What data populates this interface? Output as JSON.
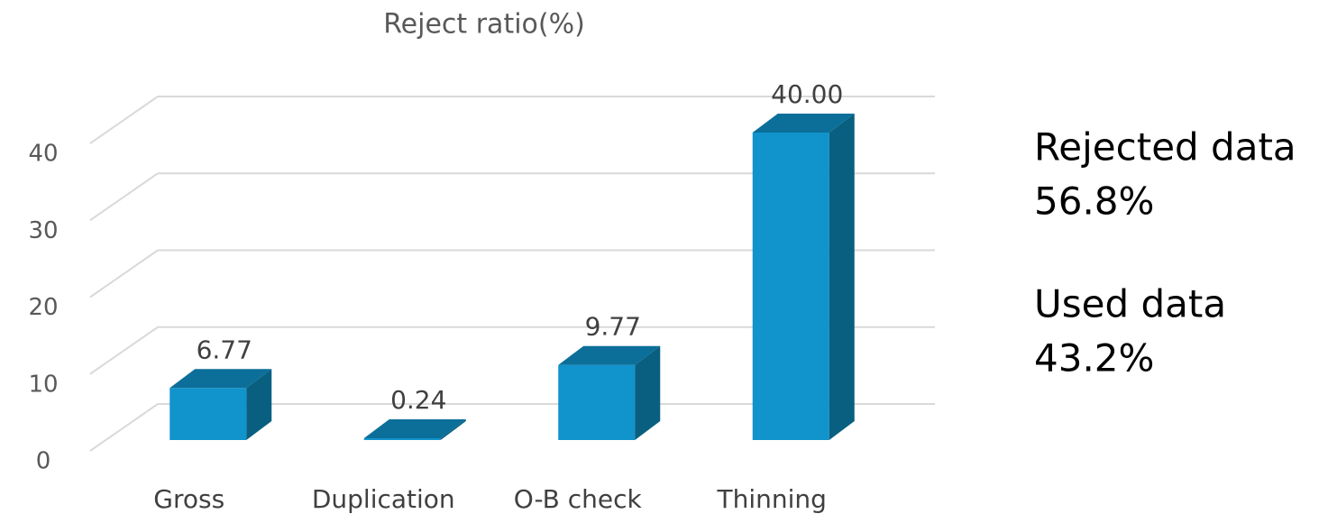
{
  "chart_data": {
    "type": "bar3d",
    "title": "Reject ratio(%)",
    "categories": [
      "Gross",
      "Duplication",
      "O-B check",
      "Thinning"
    ],
    "values": [
      6.77,
      0.24,
      9.77,
      40.0
    ],
    "value_labels": [
      "6.77",
      "0.24",
      "9.77",
      "40.00"
    ],
    "color": "#1193cc",
    "ylim": [
      0,
      40
    ],
    "yticks": [
      0,
      10,
      20,
      30,
      40
    ],
    "grid": true,
    "annotations": [
      {
        "label": "Rejected data",
        "value": "56.8%"
      },
      {
        "label": "Used data",
        "value": "43.2%"
      }
    ]
  }
}
